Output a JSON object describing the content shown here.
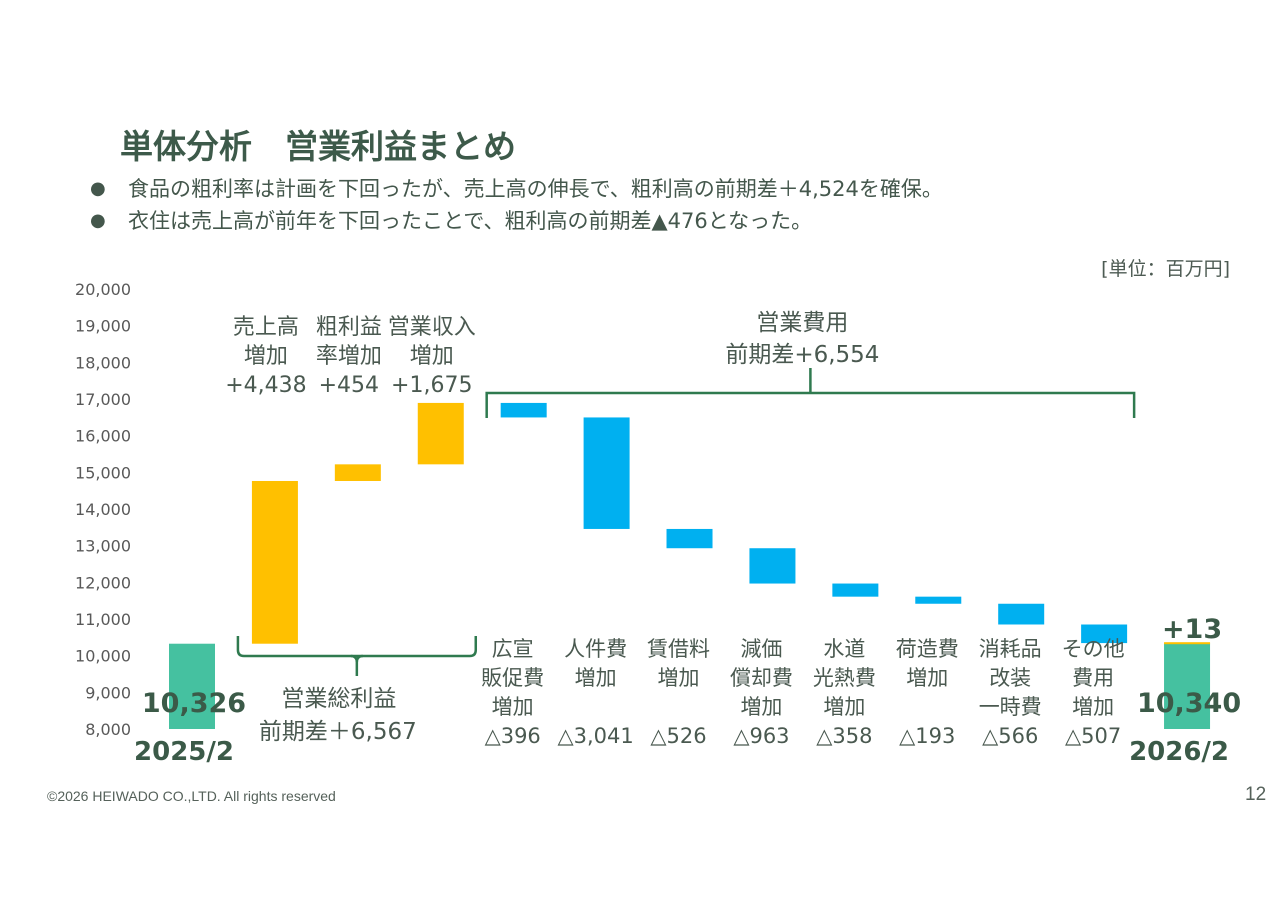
{
  "header": {
    "title": "単体分析　営業利益まとめ",
    "bullet_glyph": "●",
    "bullets": [
      "食品の粗利率は計画を下回ったが、売上高の伸長で、粗利高の前期差＋4,524を確保。",
      "衣住は売上高が前年を下回ったことで、粗利高の前期差▲476となった。"
    ]
  },
  "unit_label": "[単位：百万円]",
  "footer": {
    "copyright": "©2026  HEIWADO CO.,LTD.  All rights reserved",
    "page_number": "12"
  },
  "colors": {
    "total": "#45C1A0",
    "increase": "#FFC000",
    "decrease": "#00B0F0",
    "bracket": "#2F7A4F",
    "title_text": "#3D5A4A"
  },
  "chart_data": {
    "type": "bar",
    "subtype": "waterfall",
    "title": "",
    "xlabel": "",
    "ylabel": "",
    "unit": "百万円",
    "ylim": [
      8000,
      20000
    ],
    "grid": false,
    "yticks": [
      8000,
      9000,
      10000,
      11000,
      12000,
      13000,
      14000,
      15000,
      16000,
      17000,
      18000,
      19000,
      20000
    ],
    "ytick_labels": [
      "8,000",
      "9,000",
      "10,000",
      "11,000",
      "12,000",
      "13,000",
      "14,000",
      "15,000",
      "16,000",
      "17,000",
      "18,000",
      "19,000",
      "20,000"
    ],
    "categories": [
      "2025/2",
      "売上高増加",
      "粗利益率増加",
      "営業収入増加",
      "広宣販促費増加",
      "人件費増加",
      "賃借料増加",
      "減価償却費増加",
      "水道光熱費増加",
      "荷造費増加",
      "消耗品改装一時費",
      "その他費用増加",
      "2026/2"
    ],
    "steps": [
      {
        "kind": "total",
        "value": 10326,
        "value_label": "10,326",
        "label_lines": [
          "2025/2"
        ]
      },
      {
        "kind": "increase",
        "value": 4438,
        "value_label": "+4,438",
        "label_lines": [
          "売上高",
          "増加"
        ]
      },
      {
        "kind": "increase",
        "value": 454,
        "value_label": "+454",
        "label_lines": [
          "粗利益",
          "率増加"
        ]
      },
      {
        "kind": "increase",
        "value": 1675,
        "value_label": "+1,675",
        "label_lines": [
          "営業収入",
          "増加"
        ]
      },
      {
        "kind": "decrease",
        "value": 396,
        "value_label": "△396",
        "label_lines": [
          "広宣",
          "販促費",
          "増加"
        ]
      },
      {
        "kind": "decrease",
        "value": 3041,
        "value_label": "△3,041",
        "label_lines": [
          "人件費",
          "増加"
        ]
      },
      {
        "kind": "decrease",
        "value": 526,
        "value_label": "△526",
        "label_lines": [
          "賃借料",
          "増加"
        ]
      },
      {
        "kind": "decrease",
        "value": 963,
        "value_label": "△963",
        "label_lines": [
          "減価",
          "償却費",
          "増加"
        ]
      },
      {
        "kind": "decrease",
        "value": 358,
        "value_label": "△358",
        "label_lines": [
          "水道",
          "光熱費",
          "増加"
        ]
      },
      {
        "kind": "decrease",
        "value": 193,
        "value_label": "△193",
        "label_lines": [
          "荷造費",
          "増加"
        ]
      },
      {
        "kind": "decrease",
        "value": 566,
        "value_label": "△566",
        "label_lines": [
          "消耗品",
          "改装",
          "一時費"
        ]
      },
      {
        "kind": "decrease",
        "value": 507,
        "value_label": "△507",
        "label_lines": [
          "その他",
          "費用",
          "増加"
        ]
      },
      {
        "kind": "total",
        "value": 10340,
        "value_label": "10,340",
        "label_lines": [
          "2026/2"
        ],
        "delta_label": "+13"
      }
    ],
    "brackets": [
      {
        "name": "gross-profit-bracket",
        "from_step": 1,
        "to_step": 3,
        "position": "below",
        "label_lines": [
          "営業総利益",
          "前期差＋6,567"
        ],
        "total": 6567
      },
      {
        "name": "operating-expense-bracket",
        "from_step": 4,
        "to_step": 11,
        "position": "above",
        "label_lines": [
          "営業費用",
          "前期差+6,554"
        ],
        "total": 6554
      }
    ]
  }
}
